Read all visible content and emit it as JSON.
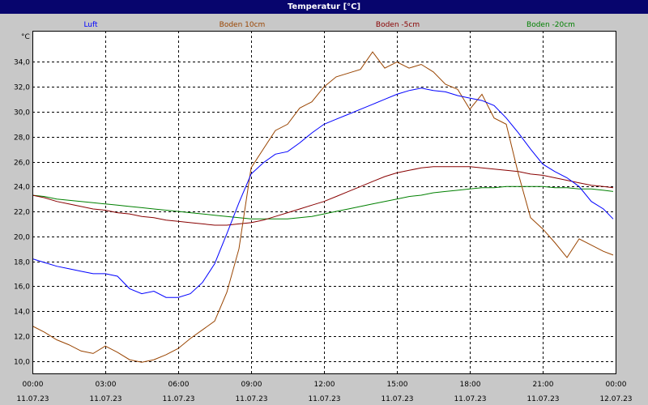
{
  "window": {
    "title": "Temperatur [°C]"
  },
  "chart_data": {
    "type": "line",
    "title": "Temperatur [°C]",
    "ylabel": "°C",
    "xlabel": "",
    "ylim": [
      9.0,
      36.5
    ],
    "xlim": [
      "11.07.23 00:00",
      "12.07.23 00:00"
    ],
    "grid": true,
    "legend_position": "top",
    "y_ticks": [
      "10,0",
      "12,0",
      "14,0",
      "16,0",
      "18,0",
      "20,0",
      "22,0",
      "24,0",
      "26,0",
      "28,0",
      "30,0",
      "32,0",
      "34,0"
    ],
    "x_ticks": [
      {
        "time": "00:00",
        "date": "11.07.23"
      },
      {
        "time": "03:00",
        "date": "11.07.23"
      },
      {
        "time": "06:00",
        "date": "11.07.23"
      },
      {
        "time": "09:00",
        "date": "11.07.23"
      },
      {
        "time": "12:00",
        "date": "11.07.23"
      },
      {
        "time": "15:00",
        "date": "11.07.23"
      },
      {
        "time": "18:00",
        "date": "11.07.23"
      },
      {
        "time": "21:00",
        "date": "11.07.23"
      },
      {
        "time": "00:00",
        "date": "12.07.23"
      }
    ],
    "x_hours": [
      0,
      0.5,
      1,
      1.5,
      2,
      2.5,
      3,
      3.5,
      4,
      4.5,
      5,
      5.5,
      6,
      6.5,
      7,
      7.5,
      8,
      8.5,
      9,
      9.5,
      10,
      10.5,
      11,
      11.5,
      12,
      12.5,
      13,
      13.5,
      14,
      14.5,
      15,
      15.5,
      16,
      16.5,
      17,
      17.5,
      18,
      18.5,
      19,
      19.5,
      20,
      20.5,
      21,
      21.5,
      22,
      22.5,
      23,
      23.5,
      23.9
    ],
    "series": [
      {
        "name": "Luft",
        "color": "#0000ff",
        "values": [
          18.2,
          17.9,
          17.6,
          17.4,
          17.2,
          17.0,
          17.0,
          16.8,
          15.8,
          15.4,
          15.6,
          15.1,
          15.1,
          15.4,
          16.3,
          17.8,
          20.2,
          22.7,
          25.0,
          25.9,
          26.6,
          26.8,
          27.5,
          28.3,
          29.0,
          29.4,
          29.8,
          30.2,
          30.6,
          31.0,
          31.4,
          31.7,
          31.9,
          31.7,
          31.6,
          31.3,
          31.1,
          30.9,
          30.5,
          29.5,
          28.3,
          27.0,
          25.8,
          25.2,
          24.7,
          24.0,
          22.8,
          22.2,
          21.4
        ]
      },
      {
        "name": "Boden 10cm",
        "color": "#994400",
        "values": [
          12.8,
          12.3,
          11.7,
          11.3,
          10.8,
          10.6,
          11.2,
          10.7,
          10.1,
          9.9,
          10.1,
          10.5,
          11.0,
          11.8,
          12.5,
          13.2,
          15.5,
          19.0,
          25.5,
          27.0,
          28.5,
          29.0,
          30.3,
          30.8,
          32.0,
          32.8,
          33.1,
          33.4,
          34.8,
          33.5,
          34.0,
          33.5,
          33.8,
          33.2,
          32.2,
          31.8,
          30.2,
          31.4,
          29.5,
          29.0,
          25.0,
          21.5,
          20.6,
          19.5,
          18.3,
          19.8,
          19.3,
          18.8,
          18.5
        ]
      },
      {
        "name": "Boden -5cm",
        "color": "#880000",
        "values": [
          23.3,
          23.1,
          22.8,
          22.6,
          22.4,
          22.2,
          22.1,
          21.9,
          21.8,
          21.6,
          21.5,
          21.3,
          21.2,
          21.1,
          21.0,
          20.9,
          20.9,
          21.0,
          21.1,
          21.3,
          21.6,
          21.9,
          22.2,
          22.5,
          22.8,
          23.2,
          23.6,
          24.0,
          24.4,
          24.8,
          25.1,
          25.3,
          25.5,
          25.6,
          25.6,
          25.6,
          25.6,
          25.5,
          25.4,
          25.3,
          25.2,
          25.0,
          24.9,
          24.7,
          24.5,
          24.3,
          24.1,
          24.0,
          23.9
        ]
      },
      {
        "name": "Boden -20cm",
        "color": "#008000",
        "values": [
          23.3,
          23.2,
          23.0,
          22.9,
          22.8,
          22.7,
          22.6,
          22.5,
          22.4,
          22.3,
          22.2,
          22.1,
          22.0,
          21.9,
          21.8,
          21.7,
          21.6,
          21.5,
          21.4,
          21.4,
          21.4,
          21.4,
          21.5,
          21.6,
          21.8,
          22.0,
          22.2,
          22.4,
          22.6,
          22.8,
          23.0,
          23.2,
          23.3,
          23.5,
          23.6,
          23.7,
          23.8,
          23.9,
          23.9,
          24.0,
          24.0,
          24.0,
          24.0,
          23.9,
          23.9,
          23.8,
          23.8,
          23.7,
          23.6
        ]
      }
    ]
  }
}
